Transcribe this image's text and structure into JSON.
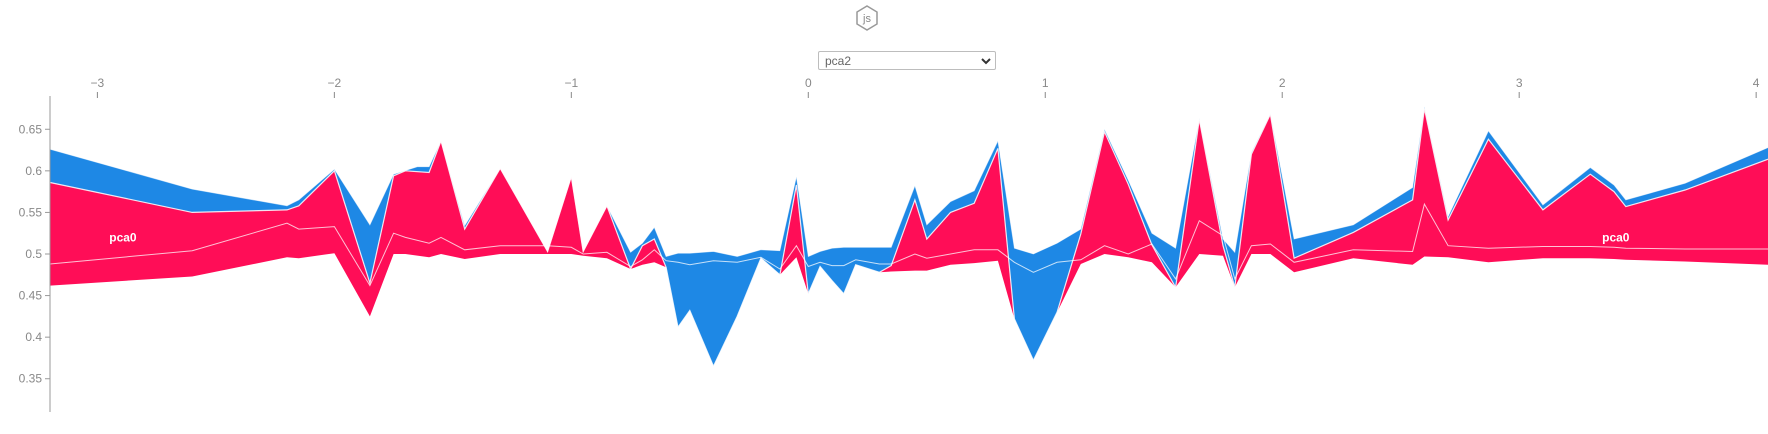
{
  "header": {
    "logo_text": "js"
  },
  "dropdown": {
    "selected": "pca2"
  },
  "colors": {
    "positive": "#ff0d57",
    "negative": "#1e88e5",
    "axis": "#888888",
    "label": "#ffffff"
  },
  "chart_data": {
    "type": "area",
    "x_axis": {
      "range": [
        -3.2,
        4.05
      ],
      "ticks": [
        -3,
        -2,
        -1,
        0,
        1,
        2,
        3,
        4
      ],
      "tick_labels": [
        "−3",
        "−2",
        "−1",
        "0",
        "1",
        "2",
        "3",
        "4"
      ],
      "position": "top"
    },
    "y_axis": {
      "range": [
        0.31,
        0.69
      ],
      "ticks": [
        0.35,
        0.4,
        0.45,
        0.5,
        0.55,
        0.6,
        0.65
      ],
      "tick_labels": [
        "0.35",
        "0.4",
        "0.45",
        "0.5",
        "0.55",
        "0.6",
        "0.65"
      ]
    },
    "labels": [
      {
        "text": "pca0",
        "x": -2.95,
        "y": 0.52
      },
      {
        "text": "pca0",
        "x": 3.35,
        "y": 0.52
      }
    ],
    "series": [
      {
        "name": "top_blue",
        "color": "#1e88e5",
        "values": [
          [
            -3.2,
            0.626
          ],
          [
            -2.6,
            0.578
          ],
          [
            -2.2,
            0.558
          ],
          [
            -2.15,
            0.565
          ],
          [
            -2.0,
            0.602
          ],
          [
            -1.85,
            0.535
          ],
          [
            -1.75,
            0.596
          ],
          [
            -1.65,
            0.605
          ],
          [
            -1.6,
            0.605
          ],
          [
            -1.55,
            0.636
          ],
          [
            -1.45,
            0.534
          ],
          [
            -1.3,
            0.603
          ],
          [
            -1.1,
            0.503
          ],
          [
            -1.0,
            0.593
          ],
          [
            -0.95,
            0.503
          ],
          [
            -0.85,
            0.558
          ],
          [
            -0.75,
            0.502
          ],
          [
            -0.7,
            0.513
          ],
          [
            -0.65,
            0.532
          ],
          [
            -0.6,
            0.497
          ],
          [
            -0.55,
            0.501
          ],
          [
            -0.5,
            0.501
          ],
          [
            -0.4,
            0.503
          ],
          [
            -0.3,
            0.497
          ],
          [
            -0.2,
            0.505
          ],
          [
            -0.12,
            0.504
          ],
          [
            -0.05,
            0.593
          ],
          [
            0.0,
            0.497
          ],
          [
            0.05,
            0.503
          ],
          [
            0.1,
            0.507
          ],
          [
            0.15,
            0.508
          ],
          [
            0.2,
            0.508
          ],
          [
            0.3,
            0.508
          ],
          [
            0.35,
            0.508
          ],
          [
            0.45,
            0.582
          ],
          [
            0.5,
            0.535
          ],
          [
            0.6,
            0.563
          ],
          [
            0.7,
            0.576
          ],
          [
            0.8,
            0.636
          ],
          [
            0.87,
            0.507
          ],
          [
            0.95,
            0.5
          ],
          [
            1.05,
            0.513
          ],
          [
            1.15,
            0.53
          ],
          [
            1.25,
            0.65
          ],
          [
            1.35,
            0.589
          ],
          [
            1.45,
            0.525
          ],
          [
            1.55,
            0.507
          ],
          [
            1.65,
            0.663
          ],
          [
            1.75,
            0.518
          ],
          [
            1.8,
            0.502
          ],
          [
            1.87,
            0.622
          ],
          [
            1.95,
            0.669
          ],
          [
            2.05,
            0.518
          ],
          [
            2.3,
            0.535
          ],
          [
            2.55,
            0.58
          ],
          [
            2.6,
            0.677
          ],
          [
            2.7,
            0.545
          ],
          [
            2.87,
            0.648
          ],
          [
            3.1,
            0.559
          ],
          [
            3.3,
            0.604
          ],
          [
            3.4,
            0.583
          ],
          [
            3.45,
            0.565
          ],
          [
            3.7,
            0.585
          ],
          [
            4.05,
            0.628
          ]
        ]
      },
      {
        "name": "red_top",
        "color": "#ff0d57",
        "values": [
          [
            -3.2,
            0.586
          ],
          [
            -2.6,
            0.55
          ],
          [
            -2.2,
            0.553
          ],
          [
            -2.15,
            0.558
          ],
          [
            -2.0,
            0.6
          ],
          [
            -1.85,
            0.465
          ],
          [
            -1.75,
            0.594
          ],
          [
            -1.7,
            0.6
          ],
          [
            -1.6,
            0.598
          ],
          [
            -1.55,
            0.636
          ],
          [
            -1.45,
            0.53
          ],
          [
            -1.3,
            0.603
          ],
          [
            -1.1,
            0.503
          ],
          [
            -1.0,
            0.593
          ],
          [
            -0.95,
            0.503
          ],
          [
            -0.85,
            0.558
          ],
          [
            -0.75,
            0.482
          ],
          [
            -0.7,
            0.51
          ],
          [
            -0.65,
            0.518
          ],
          [
            -0.6,
            0.484
          ],
          [
            -0.55,
            0.412
          ],
          [
            -0.5,
            0.432
          ],
          [
            -0.4,
            0.365
          ],
          [
            -0.3,
            0.425
          ],
          [
            -0.2,
            0.495
          ],
          [
            -0.12,
            0.475
          ],
          [
            -0.05,
            0.583
          ],
          [
            0.0,
            0.452
          ],
          [
            0.05,
            0.485
          ],
          [
            0.1,
            0.468
          ],
          [
            0.15,
            0.452
          ],
          [
            0.2,
            0.487
          ],
          [
            0.3,
            0.478
          ],
          [
            0.35,
            0.486
          ],
          [
            0.45,
            0.565
          ],
          [
            0.5,
            0.518
          ],
          [
            0.6,
            0.55
          ],
          [
            0.7,
            0.561
          ],
          [
            0.8,
            0.627
          ],
          [
            0.87,
            0.422
          ],
          [
            0.95,
            0.372
          ],
          [
            1.05,
            0.43
          ],
          [
            1.15,
            0.524
          ],
          [
            1.25,
            0.647
          ],
          [
            1.35,
            0.584
          ],
          [
            1.45,
            0.511
          ],
          [
            1.55,
            0.46
          ],
          [
            1.65,
            0.662
          ],
          [
            1.75,
            0.51
          ],
          [
            1.8,
            0.46
          ],
          [
            1.87,
            0.62
          ],
          [
            1.95,
            0.668
          ],
          [
            2.05,
            0.495
          ],
          [
            2.3,
            0.526
          ],
          [
            2.55,
            0.565
          ],
          [
            2.6,
            0.675
          ],
          [
            2.7,
            0.541
          ],
          [
            2.87,
            0.638
          ],
          [
            3.1,
            0.553
          ],
          [
            3.3,
            0.596
          ],
          [
            3.4,
            0.575
          ],
          [
            3.45,
            0.557
          ],
          [
            3.7,
            0.577
          ],
          [
            4.05,
            0.614
          ]
        ]
      },
      {
        "name": "red_bottom",
        "color": "#ff0d57",
        "values": [
          [
            -3.2,
            0.462
          ],
          [
            -2.6,
            0.473
          ],
          [
            -2.2,
            0.496
          ],
          [
            -2.15,
            0.495
          ],
          [
            -2.0,
            0.501
          ],
          [
            -1.85,
            0.425
          ],
          [
            -1.75,
            0.5
          ],
          [
            -1.7,
            0.5
          ],
          [
            -1.6,
            0.496
          ],
          [
            -1.55,
            0.5
          ],
          [
            -1.45,
            0.494
          ],
          [
            -1.3,
            0.5
          ],
          [
            -1.1,
            0.5
          ],
          [
            -1.0,
            0.5
          ],
          [
            -0.95,
            0.498
          ],
          [
            -0.85,
            0.495
          ],
          [
            -0.75,
            0.482
          ],
          [
            -0.7,
            0.487
          ],
          [
            -0.65,
            0.49
          ],
          [
            -0.6,
            0.484
          ],
          [
            -0.55,
            0.412
          ],
          [
            -0.5,
            0.432
          ],
          [
            -0.4,
            0.365
          ],
          [
            -0.3,
            0.425
          ],
          [
            -0.2,
            0.495
          ],
          [
            -0.12,
            0.475
          ],
          [
            -0.05,
            0.496
          ],
          [
            0.0,
            0.452
          ],
          [
            0.05,
            0.485
          ],
          [
            0.1,
            0.468
          ],
          [
            0.15,
            0.452
          ],
          [
            0.2,
            0.487
          ],
          [
            0.3,
            0.478
          ],
          [
            0.35,
            0.479
          ],
          [
            0.45,
            0.48
          ],
          [
            0.5,
            0.48
          ],
          [
            0.6,
            0.487
          ],
          [
            0.7,
            0.489
          ],
          [
            0.8,
            0.492
          ],
          [
            0.87,
            0.422
          ],
          [
            0.95,
            0.372
          ],
          [
            1.05,
            0.43
          ],
          [
            1.15,
            0.488
          ],
          [
            1.25,
            0.5
          ],
          [
            1.35,
            0.496
          ],
          [
            1.45,
            0.49
          ],
          [
            1.55,
            0.46
          ],
          [
            1.65,
            0.5
          ],
          [
            1.75,
            0.498
          ],
          [
            1.8,
            0.46
          ],
          [
            1.87,
            0.5
          ],
          [
            1.95,
            0.5
          ],
          [
            2.05,
            0.478
          ],
          [
            2.3,
            0.495
          ],
          [
            2.55,
            0.487
          ],
          [
            2.6,
            0.497
          ],
          [
            2.7,
            0.496
          ],
          [
            2.87,
            0.49
          ],
          [
            3.1,
            0.495
          ],
          [
            3.3,
            0.495
          ],
          [
            3.4,
            0.494
          ],
          [
            3.45,
            0.493
          ],
          [
            3.7,
            0.491
          ],
          [
            4.05,
            0.487
          ]
        ]
      },
      {
        "name": "mid_line",
        "color": "#ffffff",
        "values": [
          [
            -3.2,
            0.488
          ],
          [
            -2.6,
            0.504
          ],
          [
            -2.2,
            0.537
          ],
          [
            -2.15,
            0.53
          ],
          [
            -2.0,
            0.533
          ],
          [
            -1.85,
            0.462
          ],
          [
            -1.75,
            0.525
          ],
          [
            -1.7,
            0.52
          ],
          [
            -1.6,
            0.513
          ],
          [
            -1.55,
            0.52
          ],
          [
            -1.45,
            0.505
          ],
          [
            -1.3,
            0.51
          ],
          [
            -1.1,
            0.51
          ],
          [
            -1.0,
            0.508
          ],
          [
            -0.95,
            0.5
          ],
          [
            -0.85,
            0.502
          ],
          [
            -0.75,
            0.485
          ],
          [
            -0.7,
            0.493
          ],
          [
            -0.65,
            0.505
          ],
          [
            -0.6,
            0.492
          ],
          [
            -0.55,
            0.49
          ],
          [
            -0.5,
            0.487
          ],
          [
            -0.4,
            0.492
          ],
          [
            -0.3,
            0.49
          ],
          [
            -0.2,
            0.496
          ],
          [
            -0.12,
            0.482
          ],
          [
            -0.05,
            0.51
          ],
          [
            0.0,
            0.485
          ],
          [
            0.05,
            0.49
          ],
          [
            0.1,
            0.486
          ],
          [
            0.15,
            0.486
          ],
          [
            0.2,
            0.493
          ],
          [
            0.3,
            0.488
          ],
          [
            0.35,
            0.488
          ],
          [
            0.45,
            0.5
          ],
          [
            0.5,
            0.495
          ],
          [
            0.6,
            0.5
          ],
          [
            0.7,
            0.505
          ],
          [
            0.8,
            0.505
          ],
          [
            0.87,
            0.49
          ],
          [
            0.95,
            0.478
          ],
          [
            1.05,
            0.49
          ],
          [
            1.15,
            0.493
          ],
          [
            1.25,
            0.51
          ],
          [
            1.35,
            0.5
          ],
          [
            1.45,
            0.512
          ],
          [
            1.55,
            0.47
          ],
          [
            1.65,
            0.54
          ],
          [
            1.75,
            0.522
          ],
          [
            1.8,
            0.47
          ],
          [
            1.87,
            0.51
          ],
          [
            1.95,
            0.512
          ],
          [
            2.05,
            0.49
          ],
          [
            2.3,
            0.505
          ],
          [
            2.55,
            0.503
          ],
          [
            2.6,
            0.56
          ],
          [
            2.7,
            0.51
          ],
          [
            2.87,
            0.507
          ],
          [
            3.1,
            0.509
          ],
          [
            3.3,
            0.509
          ],
          [
            3.4,
            0.508
          ],
          [
            3.45,
            0.507
          ],
          [
            3.7,
            0.506
          ],
          [
            4.05,
            0.506
          ]
        ]
      }
    ]
  }
}
